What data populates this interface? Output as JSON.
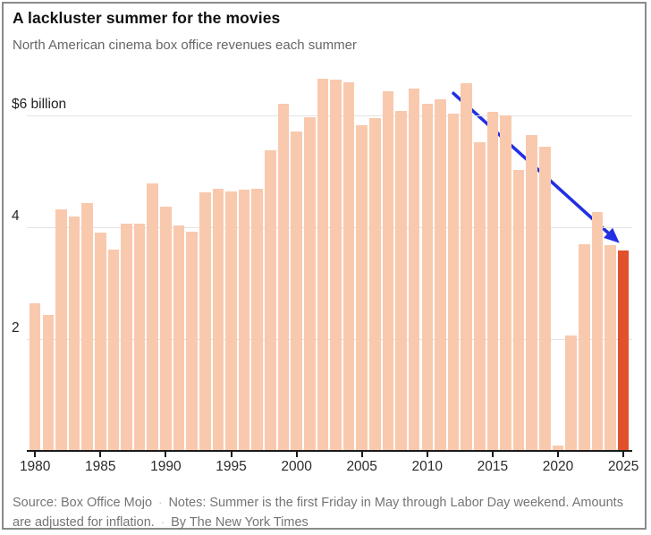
{
  "header": {
    "title": "A lackluster summer for the movies",
    "subtitle": "North American cinema box office revenues each summer"
  },
  "chart_data": {
    "type": "bar",
    "title": "A lackluster summer for the movies",
    "subtitle": "North American cinema box office revenues each summer",
    "unit": "billions of U.S. dollars",
    "years": [
      1980,
      1981,
      1982,
      1983,
      1984,
      1985,
      1986,
      1987,
      1988,
      1989,
      1990,
      1991,
      1992,
      1993,
      1994,
      1995,
      1996,
      1997,
      1998,
      1999,
      2000,
      2001,
      2002,
      2003,
      2004,
      2005,
      2006,
      2007,
      2008,
      2009,
      2010,
      2011,
      2012,
      2013,
      2014,
      2015,
      2016,
      2017,
      2018,
      2019,
      2020,
      2021,
      2022,
      2023,
      2024,
      2025
    ],
    "values": [
      2.64,
      2.43,
      4.32,
      4.19,
      4.44,
      3.91,
      3.61,
      4.07,
      4.07,
      4.79,
      4.37,
      4.04,
      3.92,
      4.63,
      4.69,
      4.64,
      4.67,
      4.69,
      5.38,
      6.22,
      5.71,
      5.98,
      6.66,
      6.64,
      6.6,
      5.83,
      5.95,
      6.44,
      6.09,
      6.48,
      6.22,
      6.29,
      6.03,
      6.58,
      5.52,
      6.07,
      6.0,
      5.03,
      5.65,
      5.44,
      0.09,
      2.07,
      3.7,
      4.27,
      3.68,
      3.59
    ],
    "ylim": [
      0,
      6.9
    ],
    "grid": true,
    "y_axis": {
      "ticks": [
        {
          "value": 6,
          "label": "$6 billion"
        },
        {
          "value": 4,
          "label": "4"
        },
        {
          "value": 2,
          "label": "2"
        }
      ]
    },
    "x_axis": {
      "tick_years": [
        1980,
        1985,
        1990,
        1995,
        2000,
        2005,
        2010,
        2015,
        2020,
        2025
      ]
    },
    "bar_color": "#f9c9ae",
    "highlight_year": 2025,
    "highlight_color": "#e0512c",
    "annotation": {
      "type": "arrow",
      "color": "#2230e2",
      "points_to": "2025 bar",
      "from": {
        "year": 2012,
        "value": 6.4
      },
      "to": {
        "year": 2024.7,
        "value": 3.72
      }
    }
  },
  "footer": {
    "source": "Source: Box Office Mojo",
    "notes": "Notes: Summer is the first Friday in May through Labor Day weekend. Amounts are adjusted for inflation.",
    "byline": "By The New York Times",
    "separator": "·"
  }
}
